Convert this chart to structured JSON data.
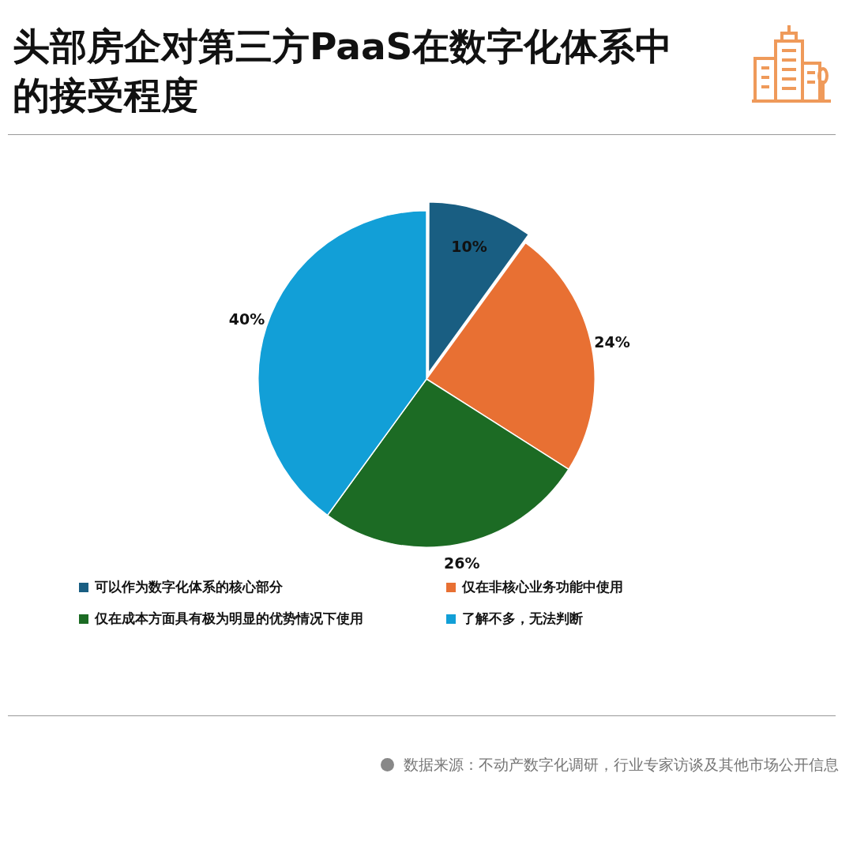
{
  "chart_data": {
    "type": "pie",
    "title": "头部房企对第三方PaaS在数字化体系中的接受程度",
    "categories": [
      "可以作为数字化体系的核心部分",
      "仅在非核心业务功能中使用",
      "仅在成本方面具有极为明显的优势情况下使用",
      "了解不多，无法判断"
    ],
    "values": [
      10,
      24,
      26,
      40
    ],
    "colors": [
      "#195e82",
      "#e87033",
      "#1c6b24",
      "#129fd7"
    ],
    "value_labels": [
      "10%",
      "24%",
      "26%",
      "40%"
    ],
    "legend": "bottom",
    "annotations": [
      "数据来源：不动产数字化调研，行业专家访谈及其他市场公开信息"
    ]
  }
}
